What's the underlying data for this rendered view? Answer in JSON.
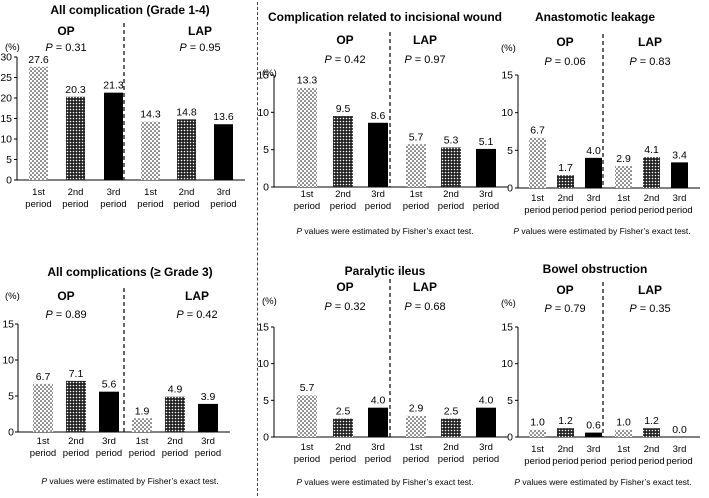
{
  "figure": {
    "common": {
      "categories": [
        "1st period",
        "2nd period",
        "3rd period",
        "1st period",
        "2nd period",
        "3rd period"
      ],
      "group_labels": [
        "OP",
        "LAP"
      ],
      "period_word": "period",
      "patterns": [
        "dots-sparse",
        "dots-dense",
        "solid"
      ],
      "footnote_p": "P",
      "footnote_rest": " values were estimated by Fisher’s exact test.",
      "p_symbol": "P",
      "unit": "(%)"
    }
  },
  "chart_data": [
    {
      "type": "bar",
      "title": "All complication (Grade 1-4)",
      "ylabel": "(%)",
      "ylim": [
        0,
        30
      ],
      "yticks": [
        0,
        5,
        10,
        15,
        20,
        25,
        30
      ],
      "groups": [
        {
          "name": "OP",
          "p_value": "= 0.31"
        },
        {
          "name": "LAP",
          "p_value": "= 0.95"
        }
      ],
      "categories": [
        "1st period",
        "2nd period",
        "3rd period",
        "1st period",
        "2nd period",
        "3rd period"
      ],
      "values": [
        27.6,
        20.3,
        21.3,
        14.3,
        14.8,
        13.6
      ],
      "value_labels": [
        "27.6",
        "20.3",
        "21.3",
        "14.3",
        "14.8",
        "13.6"
      ],
      "footnote": ""
    },
    {
      "type": "bar",
      "title": "Complication related to incisional wound",
      "ylabel": "(%)",
      "ylim": [
        0,
        15
      ],
      "yticks": [
        0,
        5,
        10,
        15
      ],
      "groups": [
        {
          "name": "OP",
          "p_value": "= 0.42"
        },
        {
          "name": "LAP",
          "p_value": "= 0.97"
        }
      ],
      "categories": [
        "1st period",
        "2nd period",
        "3rd period",
        "1st period",
        "2nd period",
        "3rd period"
      ],
      "values": [
        13.3,
        9.5,
        8.6,
        5.7,
        5.3,
        5.1
      ],
      "value_labels": [
        "13.3",
        "9.5",
        "8.6",
        "5.7",
        "5.3",
        "5.1"
      ],
      "footnote": "P values were estimated by Fisher’s exact test."
    },
    {
      "type": "bar",
      "title": "Anastomotic leakage",
      "ylabel": "(%)",
      "ylim": [
        0,
        15
      ],
      "yticks": [
        0,
        5,
        10,
        15
      ],
      "groups": [
        {
          "name": "OP",
          "p_value": "= 0.06"
        },
        {
          "name": "LAP",
          "p_value": "= 0.83"
        }
      ],
      "categories": [
        "1st period",
        "2nd period",
        "3rd period",
        "1st period",
        "2nd period",
        "3rd period"
      ],
      "values": [
        6.7,
        1.7,
        4.0,
        2.9,
        4.1,
        3.4
      ],
      "value_labels": [
        "6.7",
        "1.7",
        "4.0",
        "2.9",
        "4.1",
        "3.4"
      ],
      "footnote": "P values were estimated by Fisher’s exact test."
    },
    {
      "type": "bar",
      "title": "All complications (≥ Grade 3)",
      "ylabel": "(%)",
      "ylim": [
        0,
        15
      ],
      "yticks": [
        0,
        5,
        10,
        15
      ],
      "groups": [
        {
          "name": "OP",
          "p_value": "= 0.89"
        },
        {
          "name": "LAP",
          "p_value": "= 0.42"
        }
      ],
      "categories": [
        "1st period",
        "2nd period",
        "3rd period",
        "1st period",
        "2nd period",
        "3rd period"
      ],
      "values": [
        6.7,
        7.1,
        5.6,
        1.9,
        4.9,
        3.9
      ],
      "value_labels": [
        "6.7",
        "7.1",
        "5.6",
        "1.9",
        "4.9",
        "3.9"
      ],
      "footnote": "P values were estimated by Fisher’s exact test."
    },
    {
      "type": "bar",
      "title": "Paralytic ileus",
      "ylabel": "(%)",
      "ylim": [
        0,
        15
      ],
      "yticks": [
        0,
        5,
        10,
        15
      ],
      "groups": [
        {
          "name": "OP",
          "p_value": "= 0.32"
        },
        {
          "name": "LAP",
          "p_value": "= 0.68"
        }
      ],
      "categories": [
        "1st period",
        "2nd period",
        "3rd period",
        "1st period",
        "2nd period",
        "3rd period"
      ],
      "values": [
        5.7,
        2.5,
        4.0,
        2.9,
        2.5,
        4.0
      ],
      "value_labels": [
        "5.7",
        "2.5",
        "4.0",
        "2.9",
        "2.5",
        "4.0"
      ],
      "footnote": "P values were estimated by Fisher’s exact test."
    },
    {
      "type": "bar",
      "title": "Bowel obstruction",
      "ylabel": "(%)",
      "ylim": [
        0,
        15
      ],
      "yticks": [
        0,
        5,
        10,
        15
      ],
      "groups": [
        {
          "name": "OP",
          "p_value": "= 0.79"
        },
        {
          "name": "LAP",
          "p_value": "= 0.35"
        }
      ],
      "categories": [
        "1st period",
        "2nd period",
        "3rd period",
        "1st period",
        "2nd period",
        "3rd period"
      ],
      "values": [
        1.0,
        1.2,
        0.6,
        1.0,
        1.2,
        0.0
      ],
      "value_labels": [
        "1.0",
        "1.2",
        "0.6",
        "1.0",
        "1.2",
        "0.0"
      ],
      "footnote": "P values were estimated by Fisher’s exact test."
    }
  ]
}
